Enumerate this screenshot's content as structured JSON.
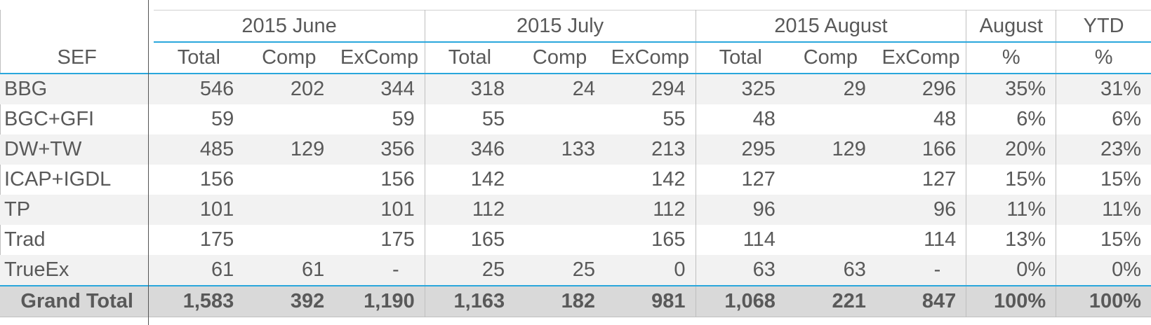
{
  "header": {
    "groups": [
      "2015 June",
      "2015 July",
      "2015 August",
      "August",
      "YTD"
    ],
    "sef_label": "SEF",
    "subheaders": [
      "Total",
      "Comp",
      "ExComp",
      "Total",
      "Comp",
      "ExComp",
      "Total",
      "Comp",
      "ExComp",
      "%",
      "%"
    ]
  },
  "rows": [
    {
      "sef": "BBG",
      "cells": [
        "546",
        "202",
        "344",
        "318",
        "24",
        "294",
        "325",
        "29",
        "296",
        "35%",
        "31%"
      ]
    },
    {
      "sef": "BGC+GFI",
      "cells": [
        "59",
        "",
        "59",
        "55",
        "",
        "55",
        "48",
        "",
        "48",
        "6%",
        "6%"
      ]
    },
    {
      "sef": "DW+TW",
      "cells": [
        "485",
        "129",
        "356",
        "346",
        "133",
        "213",
        "295",
        "129",
        "166",
        "20%",
        "23%"
      ]
    },
    {
      "sef": "ICAP+IGDL",
      "cells": [
        "156",
        "",
        "156",
        "142",
        "",
        "142",
        "127",
        "",
        "127",
        "15%",
        "15%"
      ]
    },
    {
      "sef": "TP",
      "cells": [
        "101",
        "",
        "101",
        "112",
        "",
        "112",
        "96",
        "",
        "96",
        "11%",
        "11%"
      ]
    },
    {
      "sef": "Trad",
      "cells": [
        "175",
        "",
        "175",
        "165",
        "",
        "165",
        "114",
        "",
        "114",
        "13%",
        "15%"
      ]
    },
    {
      "sef": "TrueEx",
      "cells": [
        "61",
        "61",
        "-",
        "25",
        "25",
        "0",
        "63",
        "63",
        "-",
        "0%",
        "0%"
      ]
    }
  ],
  "total": {
    "label": "Grand Total",
    "cells": [
      "1,583",
      "392",
      "1,190",
      "1,163",
      "182",
      "981",
      "1,068",
      "221",
      "847",
      "100%",
      "100%"
    ]
  }
}
